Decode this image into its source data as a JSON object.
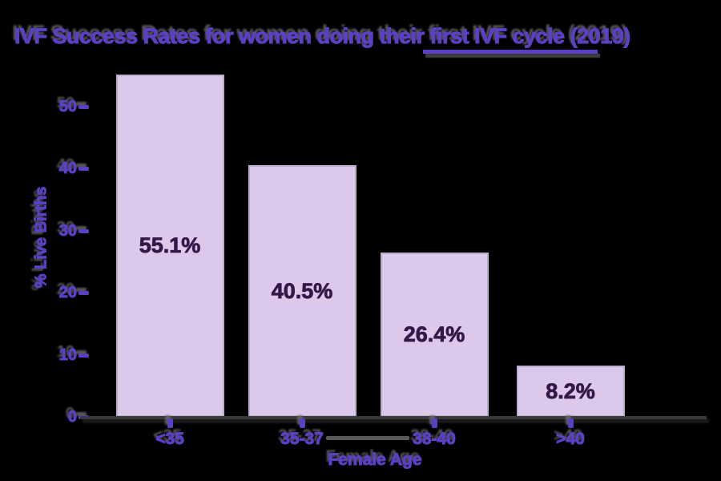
{
  "chart_data": {
    "type": "bar",
    "title": "IVF Success Rates for women doing their first IVF cycle (2019)",
    "title_underlined_phrase": "their first IVF",
    "categories": [
      "<35",
      "35-37",
      "38-40",
      ">40"
    ],
    "values": [
      55.1,
      40.5,
      26.4,
      8.2
    ],
    "bar_labels": [
      "55.1%",
      "40.5%",
      "26.4%",
      "8.2%"
    ],
    "xlabel": "Female Age",
    "ylabel": "% Live Births",
    "yticks": [
      0,
      10,
      20,
      30,
      40,
      50
    ],
    "ylim": [
      0,
      56
    ],
    "grid": false,
    "legend": false,
    "colors": {
      "background": "#000000",
      "text_purple": "#5b40c6",
      "bar_fill": "#dcc8ea",
      "bar_border": "#bcaccd",
      "bar_label_text": "#35184a",
      "axis_line": "#3a3a3a",
      "shadow_gray": "#696969",
      "connector_gray": "#5a5a5a"
    }
  }
}
